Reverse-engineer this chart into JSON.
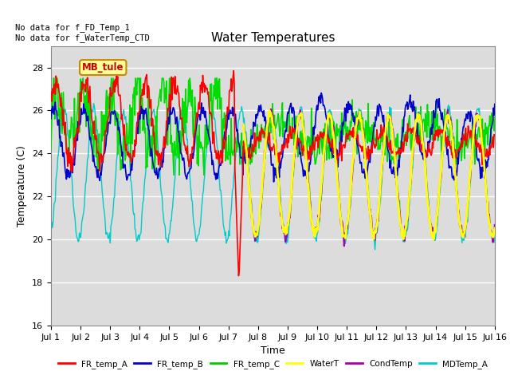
{
  "title": "Water Temperatures",
  "ylabel": "Temperature (C)",
  "xlabel": "Time",
  "ylim": [
    16,
    29
  ],
  "yticks": [
    16,
    18,
    20,
    22,
    24,
    26,
    28
  ],
  "xtick_labels": [
    "Jul 1",
    "Jul 2",
    "Jul 3",
    "Jul 4",
    "Jul 5",
    "Jul 6",
    "Jul 7",
    "Jul 8",
    "Jul 9",
    "Jul 10",
    "Jul 11",
    "Jul 12",
    "Jul 13",
    "Jul 14",
    "Jul 15",
    "Jul 16"
  ],
  "annotation_text": "No data for f_FD_Temp_1\nNo data for f_WaterTemp_CTD",
  "box_label": "MB_tule",
  "box_label_color": "#cc0000",
  "box_bg_color": "#ffff99",
  "box_border_color": "#cc8800",
  "legend_entries": [
    "FR_temp_A",
    "FR_temp_B",
    "FR_temp_C",
    "WaterT",
    "CondTemp",
    "MDTemp_A"
  ],
  "legend_colors": [
    "#ff0000",
    "#0000cc",
    "#00cc00",
    "#ffff00",
    "#aa00aa",
    "#00cccc"
  ],
  "series_colors": {
    "FR_temp_A": "#ff0000",
    "FR_temp_B": "#0000cc",
    "FR_temp_C": "#00dd00",
    "WaterT": "#ffff00",
    "CondTemp": "#aa00aa",
    "MDTemp_A": "#00cccc"
  },
  "bg_color": "#dcdcdc",
  "title_fontsize": 11,
  "axis_fontsize": 9,
  "tick_fontsize": 8,
  "n_points": 720
}
